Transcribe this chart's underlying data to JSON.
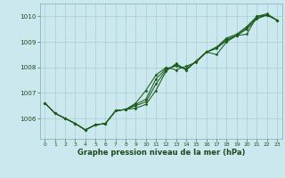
{
  "xlabel": "Graphe pression niveau de la mer (hPa)",
  "xlim": [
    -0.5,
    23.5
  ],
  "ylim": [
    1005.2,
    1010.5
  ],
  "yticks": [
    1006,
    1007,
    1008,
    1009,
    1010
  ],
  "xticks": [
    0,
    1,
    2,
    3,
    4,
    5,
    6,
    7,
    8,
    9,
    10,
    11,
    12,
    13,
    14,
    15,
    16,
    17,
    18,
    19,
    20,
    21,
    22,
    23
  ],
  "background_color": "#cce8ef",
  "grid_color": "#aaccd4",
  "line_color": "#1a5c1a",
  "series": [
    [
      1006.6,
      1006.2,
      1006.0,
      1005.8,
      1005.55,
      1005.75,
      1005.8,
      1006.3,
      1006.35,
      1006.4,
      1006.55,
      1007.1,
      1007.85,
      1008.15,
      1007.9,
      1008.25,
      1008.6,
      1008.8,
      1009.15,
      1009.3,
      1009.6,
      1010.0,
      1010.05,
      1009.85
    ],
    [
      1006.6,
      1006.2,
      1006.0,
      1005.8,
      1005.55,
      1005.75,
      1005.8,
      1006.3,
      1006.35,
      1006.5,
      1006.65,
      1007.35,
      1007.9,
      1008.1,
      1007.9,
      1008.25,
      1008.6,
      1008.75,
      1009.1,
      1009.25,
      1009.55,
      1009.95,
      1010.05,
      1009.85
    ],
    [
      1006.6,
      1006.2,
      1006.0,
      1005.8,
      1005.55,
      1005.75,
      1005.8,
      1006.3,
      1006.35,
      1006.55,
      1006.75,
      1007.55,
      1007.95,
      1008.05,
      1007.95,
      1008.25,
      1008.6,
      1008.75,
      1009.05,
      1009.25,
      1009.5,
      1009.9,
      1010.05,
      1009.85
    ],
    [
      1006.6,
      1006.2,
      1006.0,
      1005.8,
      1005.55,
      1005.75,
      1005.8,
      1006.3,
      1006.35,
      1006.6,
      1007.1,
      1007.7,
      1008.0,
      1007.9,
      1008.05,
      1008.2,
      1008.6,
      1008.5,
      1009.0,
      1009.25,
      1009.3,
      1010.0,
      1010.1,
      1009.85
    ]
  ]
}
